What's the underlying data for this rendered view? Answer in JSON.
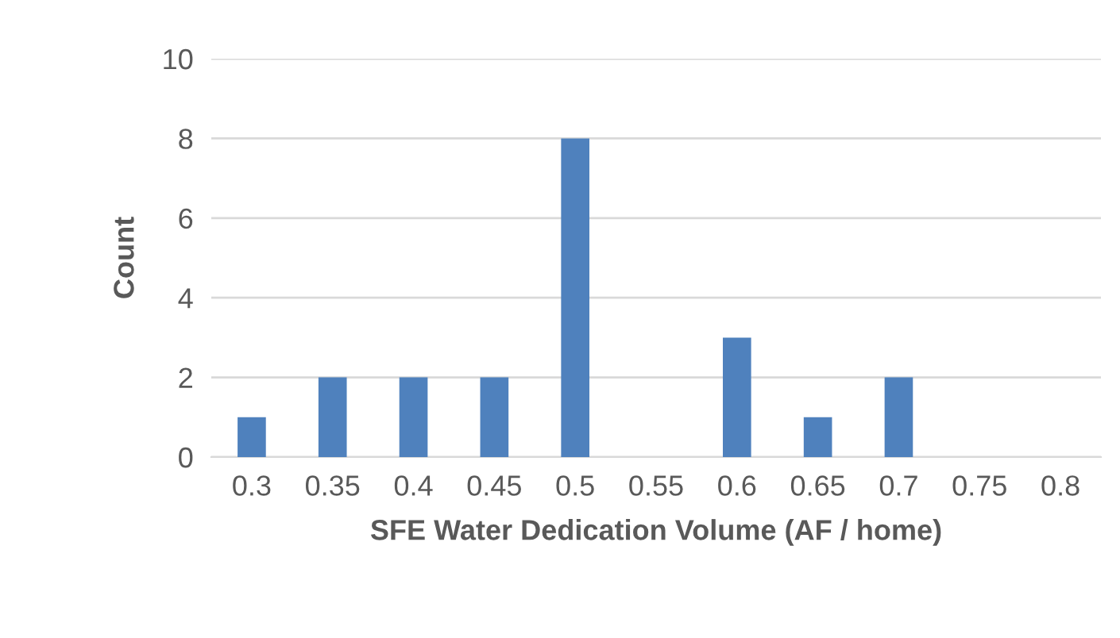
{
  "chart_data": {
    "type": "bar",
    "xlabel": "SFE Water Dedication Volume (AF / home)",
    "ylabel": "Count",
    "categories": [
      "0.3",
      "0.35",
      "0.4",
      "0.45",
      "0.5",
      "0.55",
      "0.6",
      "0.65",
      "0.7",
      "0.75",
      "0.8"
    ],
    "values": [
      1,
      2,
      2,
      2,
      8,
      0,
      3,
      1,
      2,
      0,
      0
    ],
    "color": "#4f81bd",
    "ylim": [
      0,
      10
    ],
    "yticks": [
      0,
      2,
      4,
      6,
      8,
      10
    ],
    "grid": "y"
  }
}
